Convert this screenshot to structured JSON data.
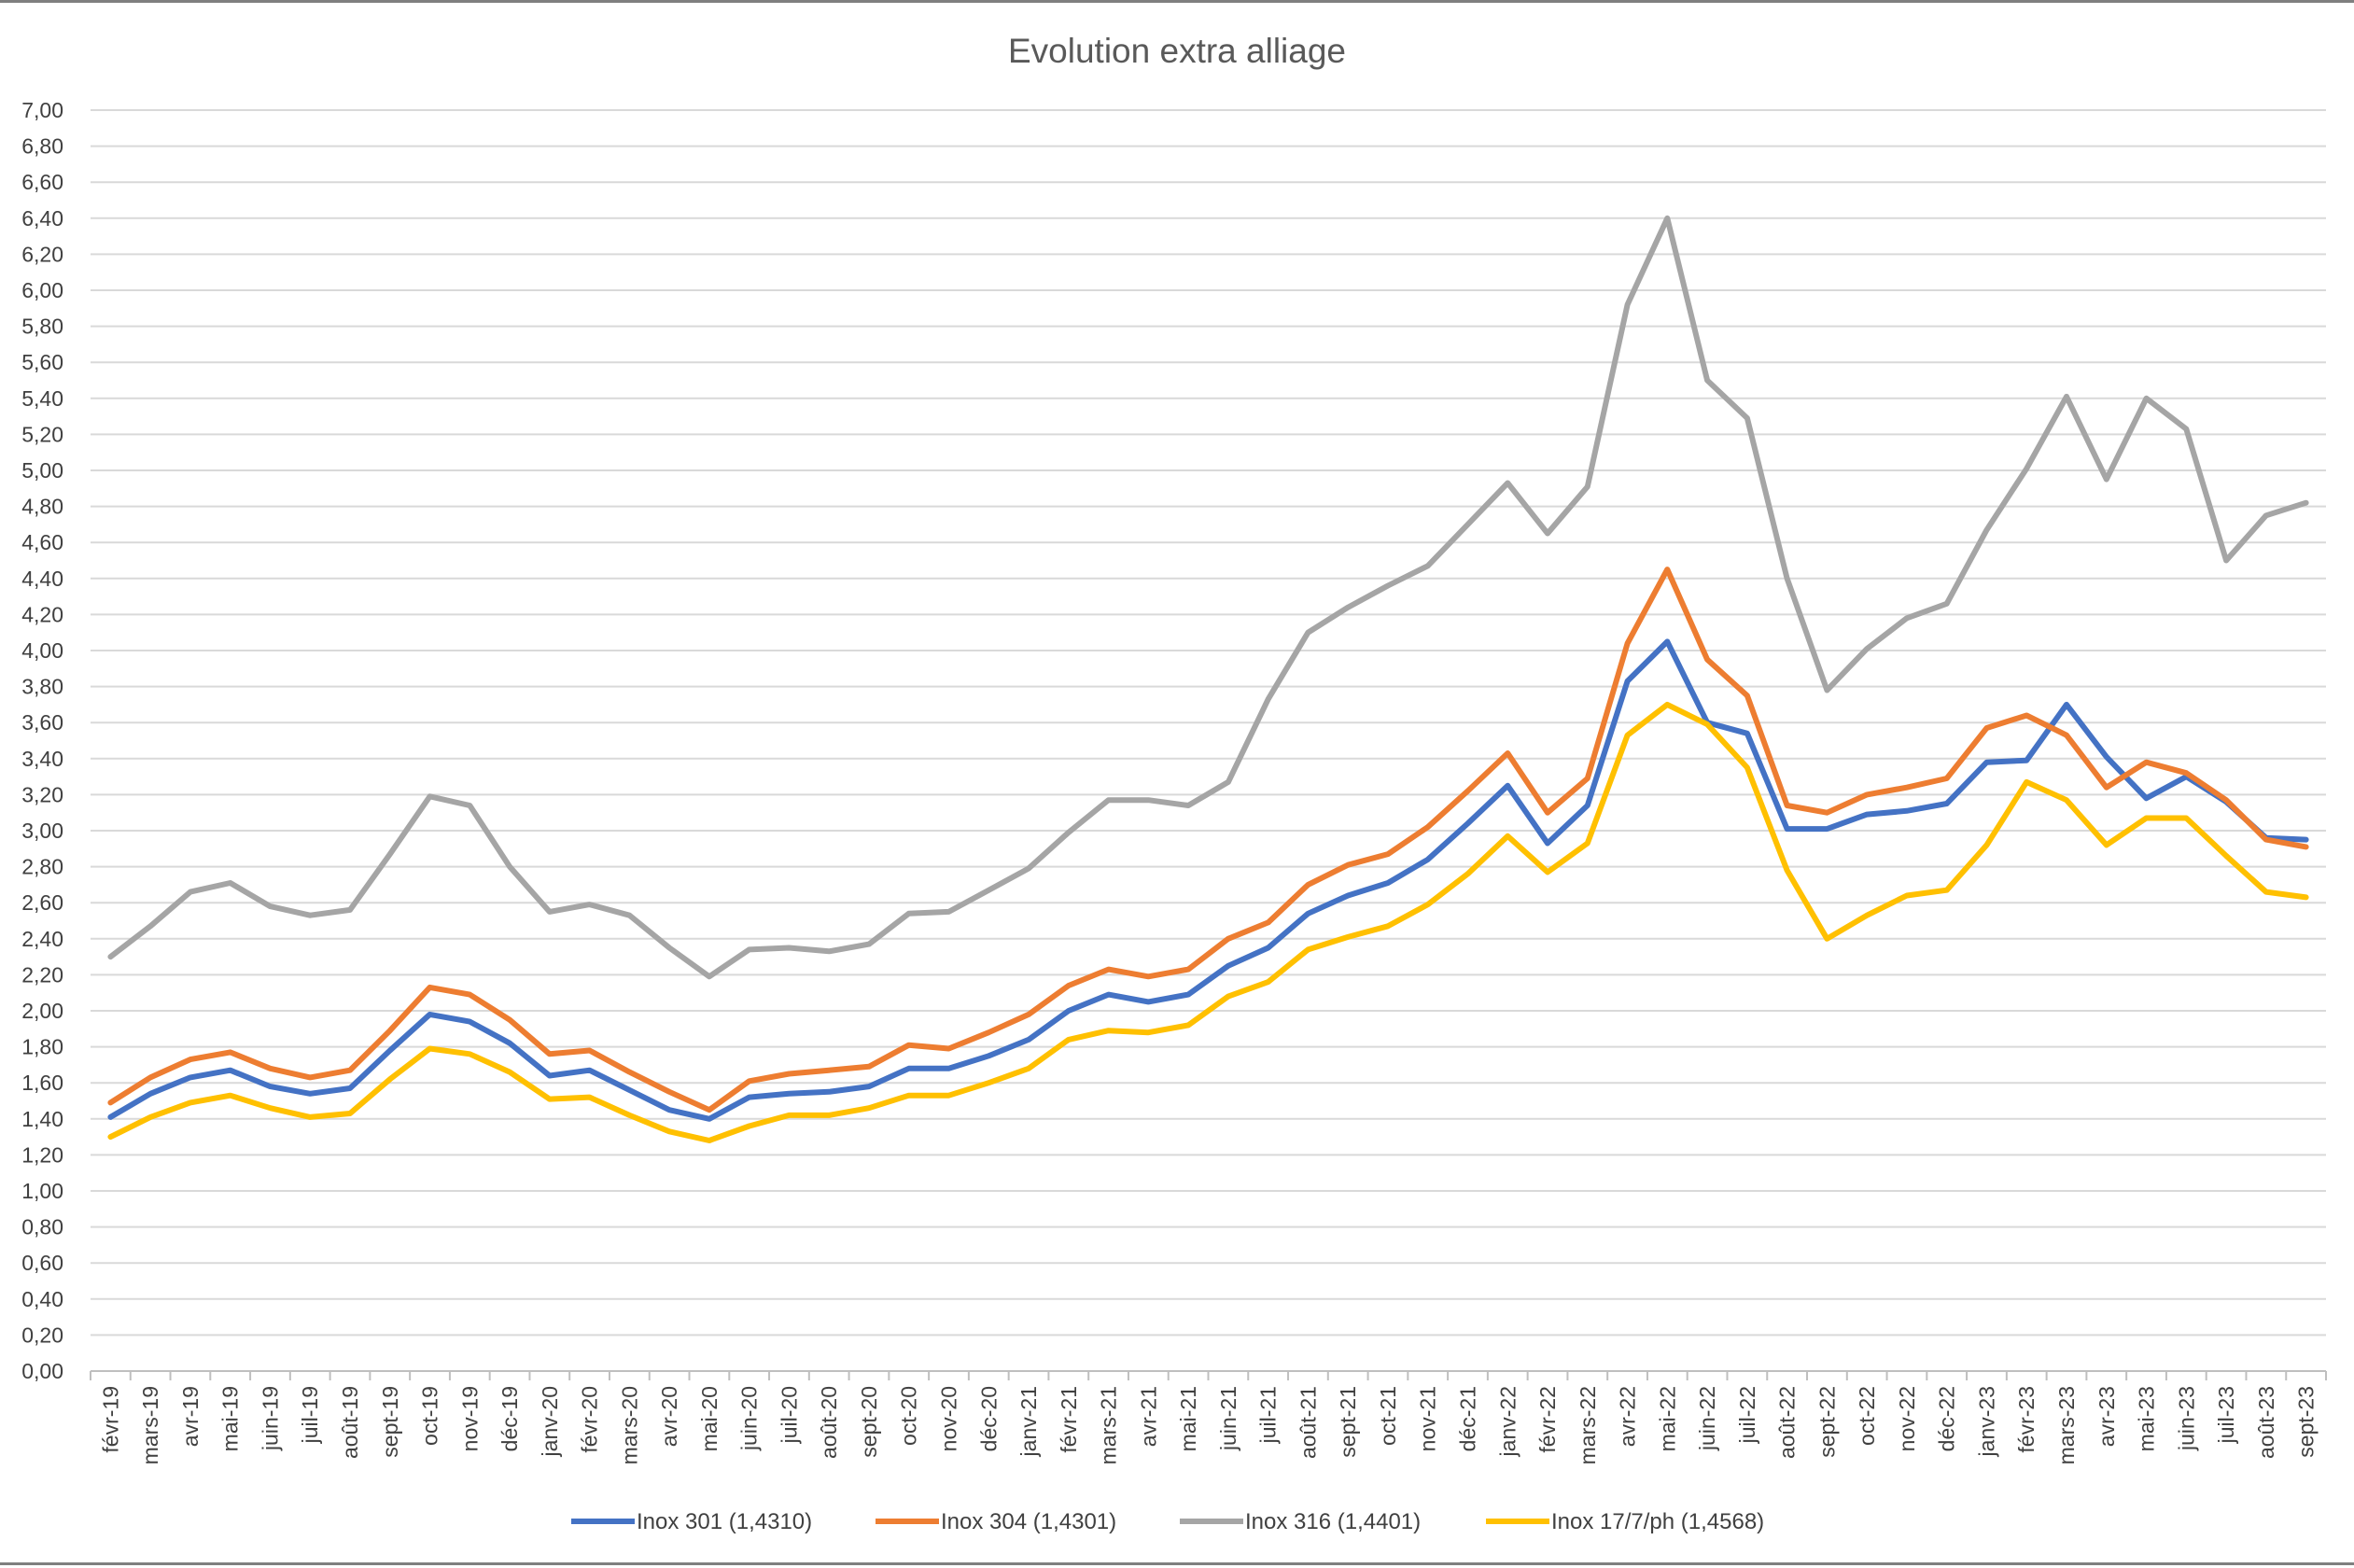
{
  "chart_data": {
    "type": "line",
    "title": "Evolution extra alliage",
    "xlabel": "",
    "ylabel": "",
    "ylim": [
      0,
      7
    ],
    "y_ticks": [
      "0,00",
      "0,20",
      "0,40",
      "0,60",
      "0,80",
      "1,00",
      "1,20",
      "1,40",
      "1,60",
      "1,80",
      "2,00",
      "2,20",
      "2,40",
      "2,60",
      "2,80",
      "3,00",
      "3,20",
      "3,40",
      "3,60",
      "3,80",
      "4,00",
      "4,20",
      "4,40",
      "4,60",
      "4,80",
      "5,00",
      "5,20",
      "5,40",
      "5,60",
      "5,80",
      "6,00",
      "6,20",
      "6,40",
      "6,60",
      "6,80",
      "7,00"
    ],
    "grid": true,
    "legend_position": "bottom",
    "categories": [
      "févr-19",
      "mars-19",
      "avr-19",
      "mai-19",
      "juin-19",
      "juil-19",
      "août-19",
      "sept-19",
      "oct-19",
      "nov-19",
      "déc-19",
      "janv-20",
      "févr-20",
      "mars-20",
      "avr-20",
      "mai-20",
      "juin-20",
      "juil-20",
      "août-20",
      "sept-20",
      "oct-20",
      "nov-20",
      "déc-20",
      "janv-21",
      "févr-21",
      "mars-21",
      "avr-21",
      "mai-21",
      "juin-21",
      "juil-21",
      "août-21",
      "sept-21",
      "oct-21",
      "nov-21",
      "déc-21",
      "janv-22",
      "févr-22",
      "mars-22",
      "avr-22",
      "mai-22",
      "juin-22",
      "juil-22",
      "août-22",
      "sept-22",
      "oct-22",
      "nov-22",
      "déc-22",
      "janv-23",
      "févr-23",
      "mars-23",
      "avr-23",
      "mai-23",
      "juin-23",
      "juil-23",
      "août-23",
      "sept-23"
    ],
    "series": [
      {
        "name": "Inox 301 (1,4310)",
        "color": "#4472C4",
        "values": [
          1.41,
          1.54,
          1.63,
          1.67,
          1.58,
          1.54,
          1.57,
          1.78,
          1.98,
          1.94,
          1.82,
          1.64,
          1.67,
          1.56,
          1.45,
          1.4,
          1.52,
          1.54,
          1.55,
          1.58,
          1.68,
          1.68,
          1.75,
          1.84,
          2.0,
          2.09,
          2.05,
          2.09,
          2.25,
          2.35,
          2.54,
          2.64,
          2.71,
          2.84,
          3.04,
          3.25,
          2.93,
          3.14,
          3.83,
          4.05,
          3.6,
          3.54,
          3.01,
          3.01,
          3.09,
          3.11,
          3.15,
          3.38,
          3.39,
          3.7,
          3.41,
          3.18,
          3.3,
          3.16,
          2.96,
          2.95
        ]
      },
      {
        "name": "Inox 304 (1,4301)",
        "color": "#ED7D31",
        "values": [
          1.49,
          1.63,
          1.73,
          1.77,
          1.68,
          1.63,
          1.67,
          1.89,
          2.13,
          2.09,
          1.95,
          1.76,
          1.78,
          1.66,
          1.55,
          1.45,
          1.61,
          1.65,
          1.67,
          1.69,
          1.81,
          1.79,
          1.88,
          1.98,
          2.14,
          2.23,
          2.19,
          2.23,
          2.4,
          2.49,
          2.7,
          2.81,
          2.87,
          3.02,
          3.22,
          3.43,
          3.1,
          3.29,
          4.04,
          4.45,
          3.95,
          3.75,
          3.14,
          3.1,
          3.2,
          3.24,
          3.29,
          3.57,
          3.64,
          3.53,
          3.24,
          3.38,
          3.32,
          3.17,
          2.95,
          2.91
        ]
      },
      {
        "name": "Inox 316 (1,4401)",
        "color": "#A5A5A5",
        "values": [
          2.3,
          2.47,
          2.66,
          2.71,
          2.58,
          2.53,
          2.56,
          2.87,
          3.19,
          3.14,
          2.8,
          2.55,
          2.59,
          2.53,
          2.35,
          2.19,
          2.34,
          2.35,
          2.33,
          2.37,
          2.54,
          2.55,
          2.67,
          2.79,
          2.99,
          3.17,
          3.17,
          3.14,
          3.27,
          3.73,
          4.1,
          4.24,
          4.36,
          4.47,
          4.7,
          4.93,
          4.65,
          4.91,
          5.92,
          6.4,
          5.5,
          5.29,
          4.4,
          3.78,
          4.01,
          4.18,
          4.26,
          4.67,
          5.01,
          5.41,
          4.95,
          5.4,
          5.23,
          4.5,
          4.75,
          4.82
        ]
      },
      {
        "name": "Inox 17/7/ph (1,4568)",
        "color": "#FFC000",
        "values": [
          1.3,
          1.41,
          1.49,
          1.53,
          1.46,
          1.41,
          1.43,
          1.62,
          1.79,
          1.76,
          1.66,
          1.51,
          1.52,
          1.42,
          1.33,
          1.28,
          1.36,
          1.42,
          1.42,
          1.46,
          1.53,
          1.53,
          1.6,
          1.68,
          1.84,
          1.89,
          1.88,
          1.92,
          2.08,
          2.16,
          2.34,
          2.41,
          2.47,
          2.59,
          2.76,
          2.97,
          2.77,
          2.93,
          3.53,
          3.7,
          3.59,
          3.35,
          2.78,
          2.4,
          2.53,
          2.64,
          2.67,
          2.92,
          3.27,
          3.17,
          2.92,
          3.07,
          3.07,
          2.86,
          2.66,
          2.63
        ]
      }
    ]
  }
}
